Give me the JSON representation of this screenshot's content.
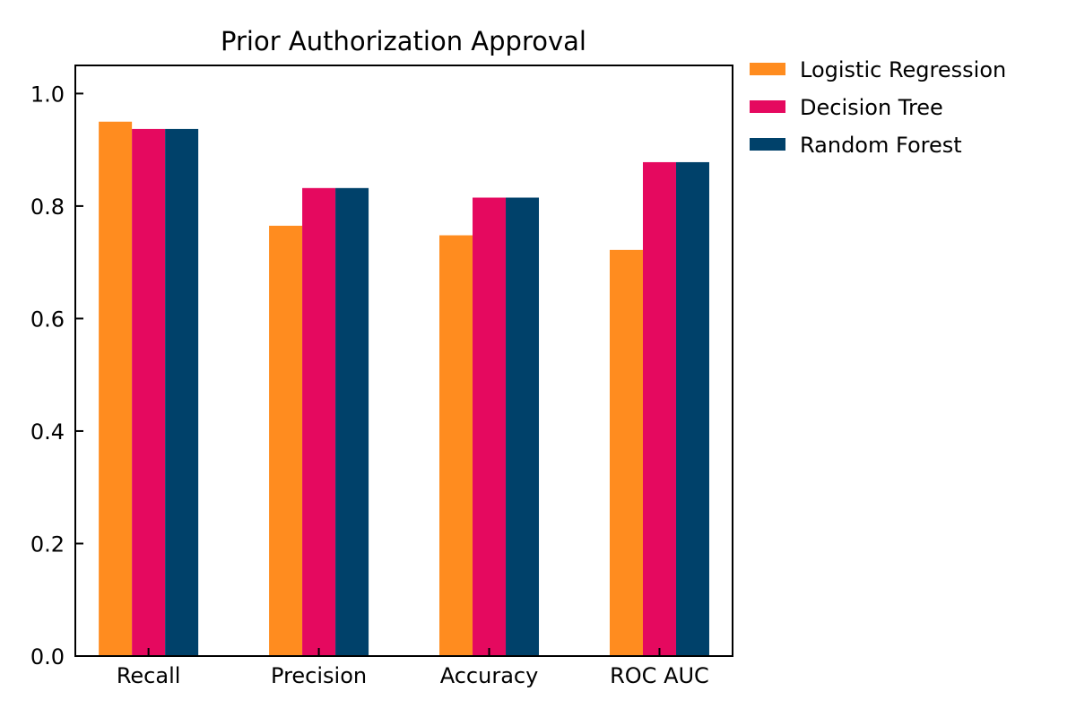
{
  "chart_data": {
    "type": "bar",
    "title": "Prior Authorization Approval",
    "xlabel": "",
    "ylabel": "",
    "categories": [
      "Recall",
      "Precision",
      "Accuracy",
      "ROC AUC"
    ],
    "series": [
      {
        "name": "Logistic Regression",
        "color": "#FF8C1F",
        "values": [
          0.95,
          0.765,
          0.748,
          0.722
        ]
      },
      {
        "name": "Decision Tree",
        "color": "#E5095F",
        "values": [
          0.937,
          0.832,
          0.815,
          0.878
        ]
      },
      {
        "name": "Random Forest",
        "color": "#00416A",
        "values": [
          0.937,
          0.832,
          0.815,
          0.878
        ]
      }
    ],
    "ylim": [
      0,
      1.05
    ],
    "yticks": [
      "0.0",
      "0.2",
      "0.4",
      "0.6",
      "0.8",
      "1.0"
    ],
    "grid": false,
    "legend_position": "outside-right-top"
  }
}
